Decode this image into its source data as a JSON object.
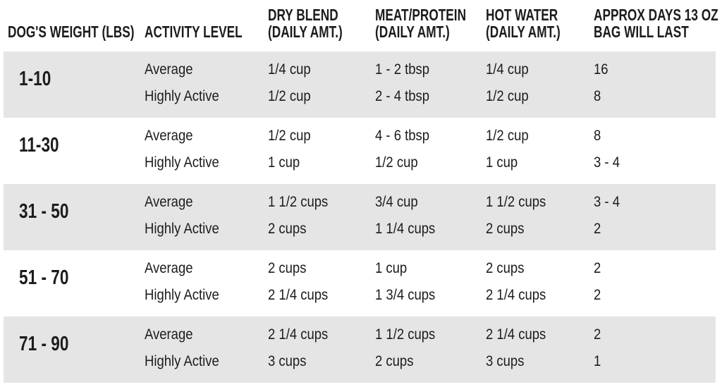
{
  "colors": {
    "background": "#ffffff",
    "stripe": "#e5e5e5",
    "text": "#1c1c1c"
  },
  "table": {
    "columns": [
      {
        "id": "weight",
        "lines": [
          "DOG'S WEIGHT (LBS)"
        ]
      },
      {
        "id": "activity",
        "lines": [
          "ACTIVITY LEVEL"
        ]
      },
      {
        "id": "dry",
        "lines": [
          "DRY BLEND",
          "(DAILY AMT.)"
        ]
      },
      {
        "id": "meat",
        "lines": [
          "MEAT/PROTEIN",
          "(DAILY AMT.)"
        ]
      },
      {
        "id": "water",
        "lines": [
          "HOT WATER",
          "(DAILY AMT.)"
        ]
      },
      {
        "id": "days",
        "lines": [
          "APPROX DAYS 13 OZ",
          "BAG WILL LAST"
        ]
      }
    ],
    "rows": [
      {
        "weight": "1-10",
        "lines": [
          {
            "activity": "Average",
            "dry": "1/4 cup",
            "meat": "1 - 2 tbsp",
            "water": "1/4 cup",
            "days": "16"
          },
          {
            "activity": "Highly Active",
            "dry": "1/2 cup",
            "meat": "2 - 4 tbsp",
            "water": "1/2 cup",
            "days": "8"
          }
        ]
      },
      {
        "weight": "11-30",
        "lines": [
          {
            "activity": "Average",
            "dry": "1/2 cup",
            "meat": "4 - 6 tbsp",
            "water": "1/2 cup",
            "days": "8"
          },
          {
            "activity": "Highly Active",
            "dry": "1 cup",
            "meat": "1/2 cup",
            "water": "1 cup",
            "days": "3 - 4"
          }
        ]
      },
      {
        "weight": "31 - 50",
        "lines": [
          {
            "activity": "Average",
            "dry": "1 1/2 cups",
            "meat": "3/4 cup",
            "water": "1 1/2 cups",
            "days": "3 - 4"
          },
          {
            "activity": "Highly Active",
            "dry": "2 cups",
            "meat": "1 1/4 cups",
            "water": "2 cups",
            "days": "2"
          }
        ]
      },
      {
        "weight": "51 - 70",
        "lines": [
          {
            "activity": "Average",
            "dry": "2 cups",
            "meat": "1 cup",
            "water": "2 cups",
            "days": "2"
          },
          {
            "activity": "Highly Active",
            "dry": "2 1/4 cups",
            "meat": "1 3/4 cups",
            "water": "2 1/4 cups",
            "days": "2"
          }
        ]
      },
      {
        "weight": "71 - 90",
        "lines": [
          {
            "activity": "Average",
            "dry": "2 1/4 cups",
            "meat": "1 1/2 cups",
            "water": "2 1/4 cups",
            "days": "2"
          },
          {
            "activity": "Highly Active",
            "dry": "3 cups",
            "meat": "2 cups",
            "water": "3 cups",
            "days": "1"
          }
        ]
      }
    ]
  },
  "chart_data": {
    "type": "table",
    "title": "Dog feeding guide",
    "columns": [
      "DOG'S WEIGHT (LBS)",
      "ACTIVITY LEVEL",
      "DRY BLEND (DAILY AMT.)",
      "MEAT/PROTEIN (DAILY AMT.)",
      "HOT WATER (DAILY AMT.)",
      "APPROX DAYS 13 OZ BAG WILL LAST"
    ],
    "rows": [
      [
        "1-10",
        "Average",
        "1/4 cup",
        "1 - 2 tbsp",
        "1/4 cup",
        "16"
      ],
      [
        "1-10",
        "Highly Active",
        "1/2 cup",
        "2 - 4 tbsp",
        "1/2 cup",
        "8"
      ],
      [
        "11-30",
        "Average",
        "1/2 cup",
        "4 - 6 tbsp",
        "1/2 cup",
        "8"
      ],
      [
        "11-30",
        "Highly Active",
        "1 cup",
        "1/2 cup",
        "1 cup",
        "3 - 4"
      ],
      [
        "31 - 50",
        "Average",
        "1 1/2 cups",
        "3/4 cup",
        "1 1/2 cups",
        "3 - 4"
      ],
      [
        "31 - 50",
        "Highly Active",
        "2 cups",
        "1 1/4 cups",
        "2 cups",
        "2"
      ],
      [
        "51 - 70",
        "Average",
        "2 cups",
        "1 cup",
        "2 cups",
        "2"
      ],
      [
        "51 - 70",
        "Highly Active",
        "2 1/4 cups",
        "1 3/4 cups",
        "2 1/4 cups",
        "2"
      ],
      [
        "71 - 90",
        "Average",
        "2 1/4 cups",
        "1 1/2 cups",
        "2 1/4 cups",
        "2"
      ],
      [
        "71 - 90",
        "Highly Active",
        "3 cups",
        "2 cups",
        "3 cups",
        "1"
      ]
    ]
  }
}
